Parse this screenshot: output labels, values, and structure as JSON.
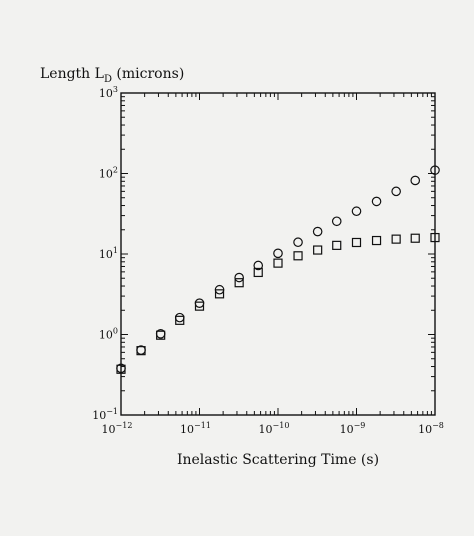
{
  "chart_data": {
    "type": "scatter",
    "y_axis_title_main": "Length L",
    "y_axis_title_sub": "D",
    "y_axis_title_unit": " (microns)",
    "xlabel": "Inelastic Scattering Time (s)",
    "x_scale": "log",
    "y_scale": "log",
    "xlim": [
      1e-12,
      1e-08
    ],
    "ylim": [
      0.1,
      1000
    ],
    "x_ticks": [
      {
        "base": "10",
        "exp": "−12",
        "value": 1e-12
      },
      {
        "base": "10",
        "exp": "−11",
        "value": 1e-11
      },
      {
        "base": "10",
        "exp": "−10",
        "value": 1e-10
      },
      {
        "base": "10",
        "exp": "−9",
        "value": 1e-09
      },
      {
        "base": "10",
        "exp": "−8",
        "value": 1e-08
      }
    ],
    "y_ticks": [
      {
        "base": "10",
        "exp": "−1",
        "value": 0.1
      },
      {
        "base": "10",
        "exp": "0",
        "value": 1
      },
      {
        "base": "10",
        "exp": "1",
        "value": 10
      },
      {
        "base": "10",
        "exp": "2",
        "value": 100
      },
      {
        "base": "10",
        "exp": "3",
        "value": 1000
      }
    ],
    "grid": false,
    "series": [
      {
        "marker": "circle",
        "x": [
          1e-12,
          1.8e-12,
          3.2e-12,
          5.6e-12,
          1e-11,
          1.8e-11,
          3.2e-11,
          5.6e-11,
          1e-10,
          1.8e-10,
          3.2e-10,
          5.6e-10,
          1e-09,
          1.8e-09,
          3.2e-09,
          5.6e-09,
          1e-08
        ],
        "y": [
          0.38,
          0.64,
          1.02,
          1.62,
          2.45,
          3.6,
          5.1,
          7.2,
          10.2,
          14,
          19,
          25.5,
          34,
          45,
          60,
          82,
          110
        ]
      },
      {
        "marker": "square",
        "x": [
          1e-12,
          1.8e-12,
          3.2e-12,
          5.6e-12,
          1e-11,
          1.8e-11,
          3.2e-11,
          5.6e-11,
          1e-10,
          1.8e-10,
          3.2e-10,
          5.6e-10,
          1e-09,
          1.8e-09,
          3.2e-09,
          5.6e-09,
          1e-08
        ],
        "y": [
          0.37,
          0.63,
          0.98,
          1.5,
          2.25,
          3.2,
          4.4,
          5.9,
          7.7,
          9.5,
          11.2,
          12.8,
          13.9,
          14.7,
          15.3,
          15.7,
          16
        ]
      }
    ]
  }
}
